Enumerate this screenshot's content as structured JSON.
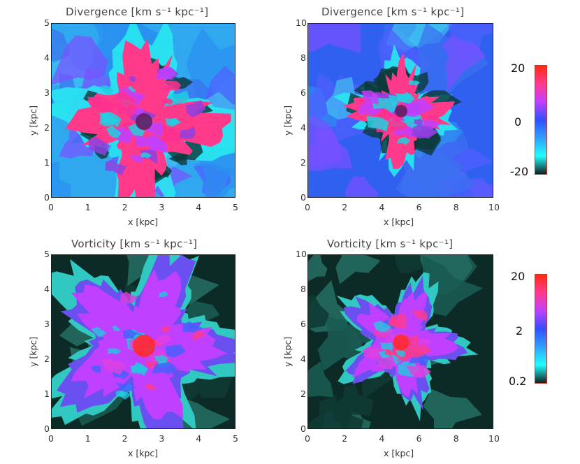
{
  "chart_data": [
    {
      "type": "heatmap",
      "title": "Divergence [km s⁻¹ kpc⁻¹]",
      "xlabel": "x [kpc]",
      "ylabel": "y [kpc]",
      "xlim": [
        0,
        5
      ],
      "ylim": [
        0,
        5
      ],
      "xticks": [
        "0",
        "1",
        "2",
        "3",
        "4",
        "5"
      ],
      "yticks": [
        "0",
        "1",
        "2",
        "3",
        "4",
        "5"
      ],
      "center": [
        2.5,
        2.2
      ]
    },
    {
      "type": "heatmap",
      "title": "Divergence [km s⁻¹ kpc⁻¹]",
      "xlabel": "x [kpc]",
      "ylabel": "y [kpc]",
      "xlim": [
        0,
        10
      ],
      "ylim": [
        0,
        10
      ],
      "xticks": [
        "0",
        "2",
        "4",
        "6",
        "8",
        "10"
      ],
      "yticks": [
        "0",
        "2",
        "4",
        "6",
        "8",
        "10"
      ],
      "center": [
        5,
        5
      ]
    },
    {
      "type": "heatmap",
      "title": "Vorticity [km s⁻¹ kpc⁻¹]",
      "xlabel": "x [kpc]",
      "ylabel": "y [kpc]",
      "xlim": [
        0,
        5
      ],
      "ylim": [
        0,
        5
      ],
      "xticks": [
        "0",
        "1",
        "2",
        "3",
        "4",
        "5"
      ],
      "yticks": [
        "0",
        "1",
        "2",
        "3",
        "4",
        "5"
      ],
      "center": [
        2.5,
        2.4
      ]
    },
    {
      "type": "heatmap",
      "title": "Vorticity [km s⁻¹ kpc⁻¹]",
      "xlabel": "x [kpc]",
      "ylabel": "y [kpc]",
      "xlim": [
        0,
        10
      ],
      "ylim": [
        0,
        10
      ],
      "xticks": [
        "0",
        "2",
        "4",
        "6",
        "8",
        "10"
      ],
      "yticks": [
        "0",
        "2",
        "4",
        "6",
        "8",
        "10"
      ],
      "center": [
        5,
        5
      ]
    }
  ],
  "colorbars": {
    "divergence": {
      "labels": [
        "20",
        "0",
        "-20"
      ],
      "scale": "linear",
      "colors": [
        "#ff2a10",
        "#ff3a90",
        "#c040ff",
        "#3050ff",
        "#30a0ff",
        "#20ffff",
        "#102020"
      ]
    },
    "vorticity": {
      "labels": [
        "20",
        "2",
        "0.2"
      ],
      "scale": "log",
      "colors": [
        "#ff2a10",
        "#ff3a90",
        "#c040ff",
        "#3050ff",
        "#30a0ff",
        "#20ffff",
        "#102020"
      ]
    }
  },
  "colors": {
    "div_bg": "#30a8f0",
    "div_bg_dark": "#3060f0",
    "div_core": "#ff3a8a",
    "vort_bg": "#0c2a26",
    "vort_mid": "#30c8c0",
    "vort_core": "#c040ff",
    "vort_hot": "#ff3a8a"
  }
}
